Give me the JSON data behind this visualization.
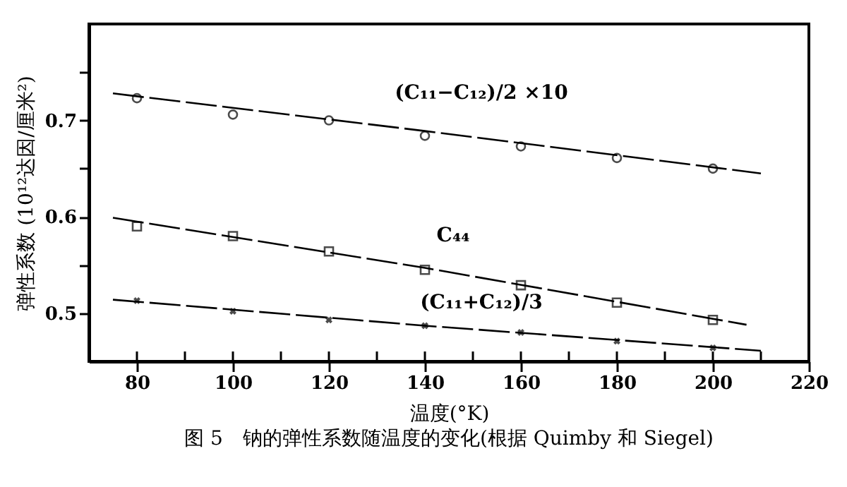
{
  "chart_data": {
    "type": "scatter",
    "xlabel": "温度(°K)",
    "ylabel": "弹性系数 (10¹²达因/厘米²)",
    "annotations": [
      "图 5　钠的弹性系数随温度的变化(根据 Quimby 和 Siegel)"
    ],
    "x": [
      80,
      100,
      120,
      140,
      160,
      180,
      200
    ],
    "series": [
      {
        "name": "(C₁₁−C₁₂)/2 ×10",
        "color": "#000000",
        "marker": "circle",
        "values": [
          0.723,
          0.706,
          0.7,
          0.684,
          0.673,
          0.661,
          0.65
        ]
      },
      {
        "name": "C₄₄",
        "color": "#000000",
        "marker": "square",
        "values": [
          0.59,
          0.58,
          0.564,
          0.545,
          0.529,
          0.511,
          0.493
        ]
      },
      {
        "name": "(C₁₁+C₁₂)/3",
        "color": "#000000",
        "marker": "cross",
        "values": [
          0.513,
          0.502,
          0.493,
          0.487,
          0.48,
          0.471,
          0.464
        ]
      },
      {
        "type": "line",
        "color": "#000000",
        "line_style": "dashed",
        "marker": "none",
        "x": [
          75,
          140,
          210
        ],
        "values": [
          0.728,
          0.689,
          0.645
        ]
      },
      {
        "type": "line",
        "color": "#000000",
        "line_style": "dashed",
        "marker": "none",
        "x": [
          75,
          140,
          207
        ],
        "values": [
          0.599,
          0.547,
          0.488
        ]
      },
      {
        "type": "line",
        "color": "#000000",
        "line_style": "dashed",
        "marker": "none",
        "x": [
          75,
          140,
          210
        ],
        "values": [
          0.514,
          0.487,
          0.461
        ]
      }
    ],
    "xlim": [
      70,
      220
    ],
    "xticks": [
      80,
      {
        "value": 90,
        "label": null
      },
      100,
      {
        "value": 110,
        "label": null
      },
      120,
      {
        "value": 130,
        "label": null
      },
      140,
      {
        "value": 150,
        "label": null
      },
      160,
      {
        "value": 170,
        "label": null
      },
      180,
      {
        "value": 190,
        "label": null
      },
      200,
      {
        "value": 210,
        "label": null
      },
      220
    ],
    "ylim": [
      0.45,
      0.8
    ],
    "yticks": [
      0.5,
      {
        "value": 0.55,
        "label": null
      },
      0.6,
      {
        "value": 0.65,
        "label": null
      },
      0.7,
      {
        "value": 0.75,
        "label": null
      }
    ],
    "grid": false
  }
}
